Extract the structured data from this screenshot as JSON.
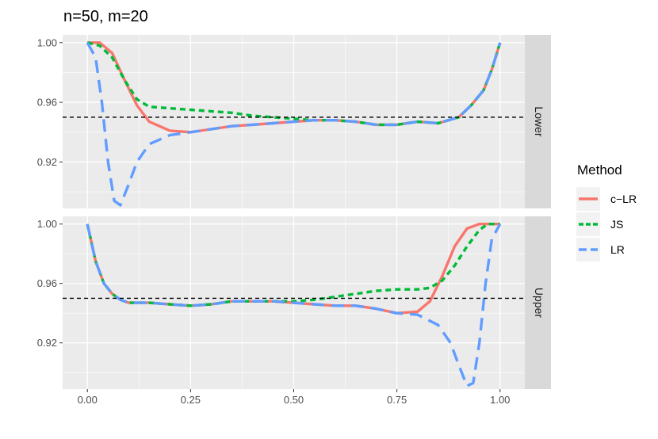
{
  "chart_data": {
    "type": "line",
    "title": "n=50, m=20",
    "xlabel": "",
    "ylabel": "",
    "xlim": [
      -0.06,
      1.06
    ],
    "x_ticks": [
      0,
      0.25,
      0.5,
      0.75,
      1
    ],
    "x_tick_labels": [
      "0.00",
      "0.25",
      "0.50",
      "0.75",
      "1.00"
    ],
    "legend": {
      "title": "Method",
      "position": "right",
      "entries": [
        {
          "label": "c−LR",
          "color": "#F8766D",
          "dash": "solid"
        },
        {
          "label": "JS",
          "color": "#00BA38",
          "dash": "dotted"
        },
        {
          "label": "LR",
          "color": "#619CFF",
          "dash": "dashed"
        }
      ]
    },
    "reference_line": {
      "y": 0.95,
      "style": "dashed",
      "color": "#000000"
    },
    "panels": [
      {
        "strip": "Lower",
        "ylim": [
          0.8889,
          1.0052
        ],
        "y_ticks": [
          0.92,
          0.96,
          1.0
        ],
        "y_tick_labels": [
          "0.92",
          "0.96",
          "1.00"
        ],
        "series": [
          {
            "name": "c−LR",
            "x": [
              0,
              0.03,
              0.06,
              0.09,
              0.12,
              0.15,
              0.2,
              0.25,
              0.3,
              0.35,
              0.4,
              0.45,
              0.5,
              0.55,
              0.6,
              0.65,
              0.7,
              0.75,
              0.8,
              0.85,
              0.9,
              0.93,
              0.96,
              0.98,
              1.0
            ],
            "y": [
              1.0,
              1.0,
              0.993,
              0.975,
              0.958,
              0.947,
              0.941,
              0.94,
              0.942,
              0.944,
              0.945,
              0.946,
              0.947,
              0.948,
              0.948,
              0.947,
              0.945,
              0.945,
              0.947,
              0.946,
              0.95,
              0.958,
              0.968,
              0.982,
              1.0
            ]
          },
          {
            "name": "JS",
            "x": [
              0,
              0.03,
              0.06,
              0.09,
              0.12,
              0.15,
              0.2,
              0.25,
              0.3,
              0.35,
              0.4,
              0.45,
              0.5,
              0.55,
              0.6,
              0.65,
              0.7,
              0.75,
              0.8,
              0.85,
              0.9,
              0.93,
              0.96,
              0.98,
              1.0
            ],
            "y": [
              1.0,
              0.998,
              0.99,
              0.975,
              0.962,
              0.957,
              0.956,
              0.955,
              0.954,
              0.953,
              0.951,
              0.95,
              0.949,
              0.948,
              0.948,
              0.947,
              0.945,
              0.945,
              0.947,
              0.946,
              0.95,
              0.958,
              0.968,
              0.982,
              1.0
            ]
          },
          {
            "name": "LR",
            "x": [
              0,
              0.02,
              0.035,
              0.05,
              0.065,
              0.08,
              0.1,
              0.12,
              0.15,
              0.2,
              0.25,
              0.3,
              0.35,
              0.4,
              0.45,
              0.5,
              0.55,
              0.6,
              0.65,
              0.7,
              0.75,
              0.8,
              0.85,
              0.9,
              0.93,
              0.96,
              0.98,
              1.0
            ],
            "y": [
              1.0,
              0.99,
              0.96,
              0.92,
              0.894,
              0.891,
              0.905,
              0.92,
              0.932,
              0.938,
              0.94,
              0.942,
              0.944,
              0.945,
              0.946,
              0.947,
              0.948,
              0.948,
              0.947,
              0.945,
              0.945,
              0.947,
              0.946,
              0.95,
              0.958,
              0.968,
              0.982,
              1.0
            ]
          }
        ]
      },
      {
        "strip": "Upper",
        "ylim": [
          0.8889,
          1.0052
        ],
        "y_ticks": [
          0.92,
          0.96,
          1.0
        ],
        "y_tick_labels": [
          "0.92",
          "0.96",
          "1.00"
        ],
        "series": [
          {
            "name": "c−LR",
            "x": [
              0,
              0.02,
              0.04,
              0.06,
              0.08,
              0.1,
              0.15,
              0.2,
              0.25,
              0.3,
              0.35,
              0.4,
              0.45,
              0.5,
              0.55,
              0.6,
              0.65,
              0.7,
              0.75,
              0.8,
              0.83,
              0.86,
              0.89,
              0.92,
              0.95,
              0.97,
              1.0
            ],
            "y": [
              1.0,
              0.975,
              0.96,
              0.953,
              0.949,
              0.947,
              0.947,
              0.946,
              0.945,
              0.946,
              0.948,
              0.948,
              0.948,
              0.947,
              0.946,
              0.945,
              0.945,
              0.943,
              0.94,
              0.941,
              0.948,
              0.965,
              0.985,
              0.997,
              1.0,
              1.0,
              1.0
            ]
          },
          {
            "name": "JS",
            "x": [
              0,
              0.02,
              0.04,
              0.06,
              0.08,
              0.1,
              0.15,
              0.2,
              0.25,
              0.3,
              0.35,
              0.4,
              0.45,
              0.5,
              0.55,
              0.6,
              0.65,
              0.7,
              0.75,
              0.8,
              0.83,
              0.86,
              0.89,
              0.92,
              0.95,
              0.97,
              1.0
            ],
            "y": [
              1.0,
              0.975,
              0.96,
              0.953,
              0.949,
              0.947,
              0.947,
              0.946,
              0.945,
              0.946,
              0.948,
              0.948,
              0.948,
              0.948,
              0.949,
              0.951,
              0.953,
              0.955,
              0.956,
              0.956,
              0.957,
              0.962,
              0.972,
              0.985,
              0.996,
              1.0,
              1.0
            ]
          },
          {
            "name": "LR",
            "x": [
              0,
              0.02,
              0.04,
              0.06,
              0.08,
              0.1,
              0.15,
              0.2,
              0.25,
              0.3,
              0.35,
              0.4,
              0.45,
              0.5,
              0.55,
              0.6,
              0.65,
              0.7,
              0.75,
              0.8,
              0.85,
              0.88,
              0.9,
              0.92,
              0.935,
              0.95,
              0.965,
              0.98,
              1.0
            ],
            "y": [
              1.0,
              0.975,
              0.96,
              0.953,
              0.949,
              0.947,
              0.947,
              0.946,
              0.945,
              0.946,
              0.948,
              0.948,
              0.948,
              0.947,
              0.946,
              0.945,
              0.945,
              0.943,
              0.94,
              0.939,
              0.932,
              0.92,
              0.905,
              0.891,
              0.893,
              0.92,
              0.96,
              0.99,
              1.0
            ]
          }
        ]
      }
    ]
  }
}
